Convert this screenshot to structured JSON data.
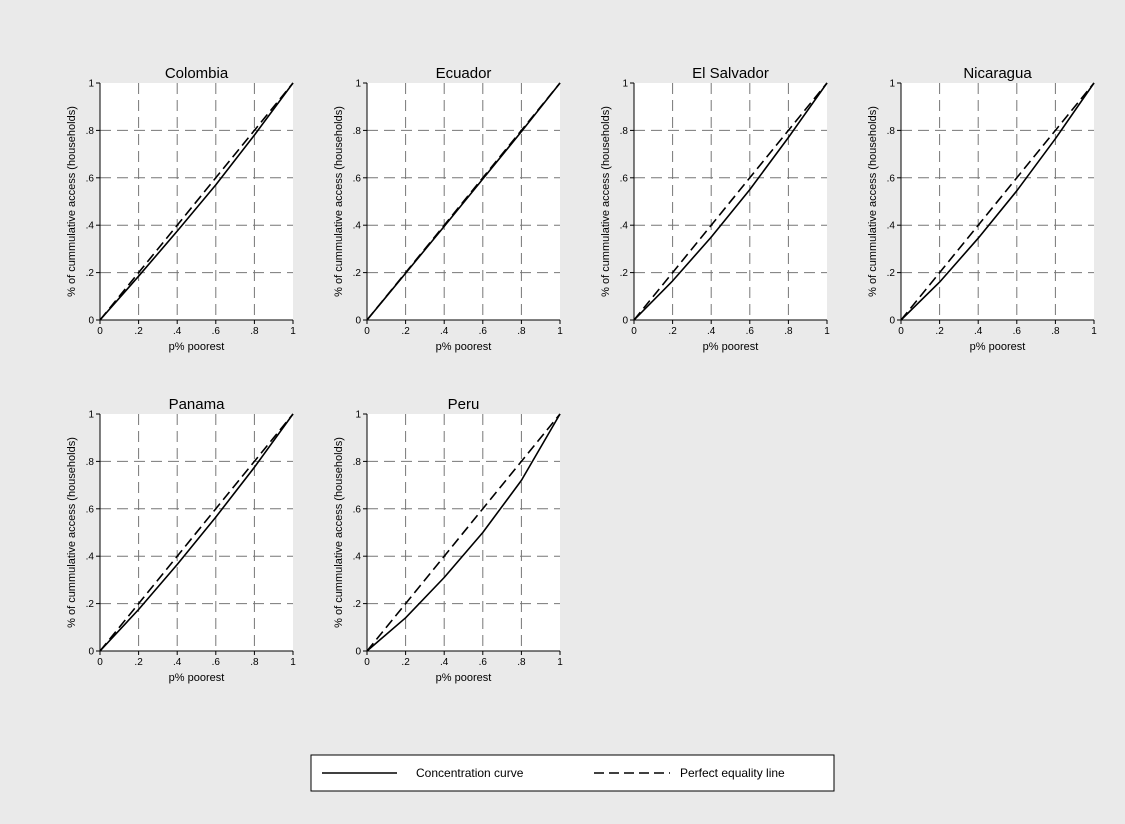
{
  "colors": {
    "background": "#eaeaea",
    "plot_area": "#ffffff",
    "ink": "#000000",
    "grid": "#777777"
  },
  "legend": {
    "placement": "bottom-center",
    "items": [
      {
        "label": "Concentration curve",
        "style": "solid"
      },
      {
        "label": "Perfect equality line",
        "style": "dashed"
      }
    ]
  },
  "chart_data": [
    {
      "type": "line",
      "title": "Colombia",
      "xlabel": "p% poorest",
      "ylabel": "% of cummulative access (households)",
      "xlim": [
        0,
        1
      ],
      "ylim": [
        0,
        1
      ],
      "grid": true,
      "x_ticks": [
        "0",
        ".2",
        ".4",
        ".6",
        ".8",
        "1"
      ],
      "y_ticks": [
        "0",
        ".2",
        ".4",
        ".6",
        ".8",
        "1"
      ],
      "series": [
        {
          "name": "Concentration curve",
          "x": [
            0,
            0.2,
            0.4,
            0.6,
            0.8,
            1
          ],
          "y": [
            0,
            0.185,
            0.375,
            0.57,
            0.78,
            1
          ]
        },
        {
          "name": "Perfect equality line",
          "x": [
            0,
            1
          ],
          "y": [
            0,
            1
          ]
        }
      ]
    },
    {
      "type": "line",
      "title": "Ecuador",
      "xlabel": "p% poorest",
      "ylabel": "% of cummulative access (households)",
      "xlim": [
        0,
        1
      ],
      "ylim": [
        0,
        1
      ],
      "grid": true,
      "x_ticks": [
        "0",
        ".2",
        ".4",
        ".6",
        ".8",
        "1"
      ],
      "y_ticks": [
        "0",
        ".2",
        ".4",
        ".6",
        ".8",
        "1"
      ],
      "series": [
        {
          "name": "Concentration curve",
          "x": [
            0,
            0.2,
            0.4,
            0.6,
            0.8,
            1
          ],
          "y": [
            0,
            0.197,
            0.395,
            0.595,
            0.795,
            1
          ]
        },
        {
          "name": "Perfect equality line",
          "x": [
            0,
            1
          ],
          "y": [
            0,
            1
          ]
        }
      ]
    },
    {
      "type": "line",
      "title": "El Salvador",
      "xlabel": "p% poorest",
      "ylabel": "% of cummulative access (households)",
      "xlim": [
        0,
        1
      ],
      "ylim": [
        0,
        1
      ],
      "grid": true,
      "x_ticks": [
        "0",
        ".2",
        ".4",
        ".6",
        ".8",
        "1"
      ],
      "y_ticks": [
        "0",
        ".2",
        ".4",
        ".6",
        ".8",
        "1"
      ],
      "series": [
        {
          "name": "Concentration curve",
          "x": [
            0,
            0.2,
            0.4,
            0.6,
            0.8,
            1
          ],
          "y": [
            0,
            0.165,
            0.35,
            0.55,
            0.77,
            1
          ]
        },
        {
          "name": "Perfect equality line",
          "x": [
            0,
            1
          ],
          "y": [
            0,
            1
          ]
        }
      ]
    },
    {
      "type": "line",
      "title": "Nicaragua",
      "xlabel": "p% poorest",
      "ylabel": "% of cummulative access (households)",
      "xlim": [
        0,
        1
      ],
      "ylim": [
        0,
        1
      ],
      "grid": true,
      "x_ticks": [
        "0",
        ".2",
        ".4",
        ".6",
        ".8",
        "1"
      ],
      "y_ticks": [
        "0",
        ".2",
        ".4",
        ".6",
        ".8",
        "1"
      ],
      "series": [
        {
          "name": "Concentration curve",
          "x": [
            0,
            0.2,
            0.4,
            0.6,
            0.8,
            1
          ],
          "y": [
            0,
            0.16,
            0.345,
            0.545,
            0.765,
            1
          ]
        },
        {
          "name": "Perfect equality line",
          "x": [
            0,
            1
          ],
          "y": [
            0,
            1
          ]
        }
      ]
    },
    {
      "type": "line",
      "title": "Panama",
      "xlabel": "p% poorest",
      "ylabel": "% of cummulative access (households)",
      "xlim": [
        0,
        1
      ],
      "ylim": [
        0,
        1
      ],
      "grid": true,
      "x_ticks": [
        "0",
        ".2",
        ".4",
        ".6",
        ".8",
        "1"
      ],
      "y_ticks": [
        "0",
        ".2",
        ".4",
        ".6",
        ".8",
        "1"
      ],
      "series": [
        {
          "name": "Concentration curve",
          "x": [
            0,
            0.2,
            0.4,
            0.6,
            0.8,
            1
          ],
          "y": [
            0,
            0.175,
            0.365,
            0.565,
            0.775,
            1
          ]
        },
        {
          "name": "Perfect equality line",
          "x": [
            0,
            1
          ],
          "y": [
            0,
            1
          ]
        }
      ]
    },
    {
      "type": "line",
      "title": "Peru",
      "xlabel": "p% poorest",
      "ylabel": "% of cummulative access (households)",
      "xlim": [
        0,
        1
      ],
      "ylim": [
        0,
        1
      ],
      "grid": true,
      "x_ticks": [
        "0",
        ".2",
        ".4",
        ".6",
        ".8",
        "1"
      ],
      "y_ticks": [
        "0",
        ".2",
        ".4",
        ".6",
        ".8",
        "1"
      ],
      "series": [
        {
          "name": "Concentration curve",
          "x": [
            0,
            0.2,
            0.4,
            0.6,
            0.8,
            1
          ],
          "y": [
            0,
            0.14,
            0.31,
            0.5,
            0.72,
            1
          ]
        },
        {
          "name": "Perfect equality line",
          "x": [
            0,
            1
          ],
          "y": [
            0,
            1
          ]
        }
      ]
    }
  ]
}
